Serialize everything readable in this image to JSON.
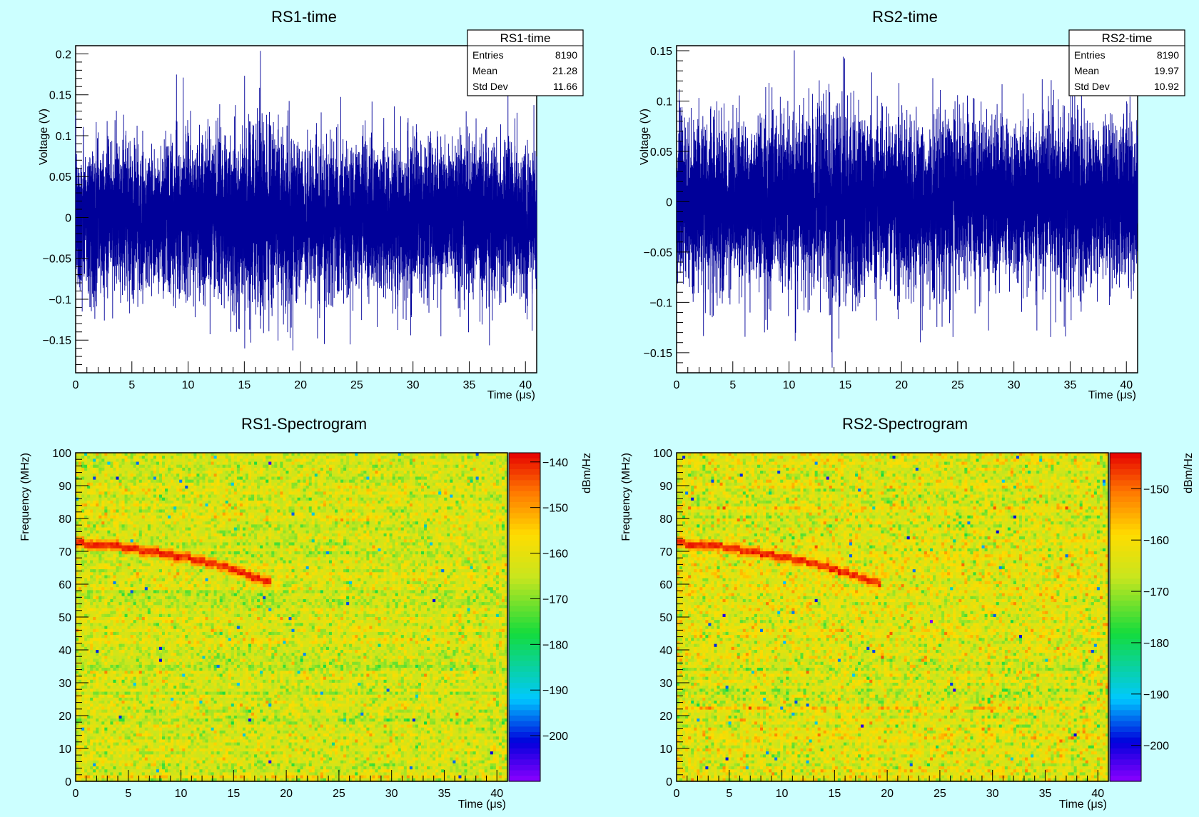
{
  "chart_data": [
    {
      "type": "line",
      "panel": "RS1",
      "title": "RS1-time",
      "xlabel": "Time (μs)",
      "ylabel": "Voltage (V)",
      "xlim": [
        0,
        41
      ],
      "ylim": [
        -0.19,
        0.21
      ],
      "xticks": [
        "0",
        "5",
        "10",
        "15",
        "20",
        "25",
        "30",
        "35",
        "40"
      ],
      "yticks": [
        "−0.15",
        "−0.1",
        "−0.05",
        "0",
        "0.05",
        "0.1",
        "0.15",
        "0.2"
      ],
      "xtick_values": [
        0,
        5,
        10,
        15,
        20,
        25,
        30,
        35,
        40
      ],
      "ytick_values": [
        -0.15,
        -0.1,
        -0.05,
        0,
        0.05,
        0.1,
        0.15,
        0.2
      ],
      "color": "#000099",
      "entries": 8190,
      "noise_sigma": 0.045,
      "envelope": [
        [
          0,
          1.0
        ],
        [
          5,
          0.95
        ],
        [
          10,
          1.0
        ],
        [
          14,
          1.15
        ],
        [
          17,
          1.25
        ],
        [
          20,
          1.0
        ],
        [
          25,
          0.95
        ],
        [
          30,
          1.0
        ],
        [
          35,
          1.02
        ],
        [
          41,
          1.0
        ]
      ],
      "stats": {
        "title": "RS1-time",
        "rows": [
          {
            "label": "Entries",
            "value": "8190"
          },
          {
            "label": "Mean",
            "value": "21.28"
          },
          {
            "label": "Std Dev",
            "value": "11.66"
          }
        ]
      }
    },
    {
      "type": "line",
      "panel": "RS2",
      "title": "RS2-time",
      "xlabel": "Time (μs)",
      "ylabel": "Voltage (V)",
      "xlim": [
        0,
        41
      ],
      "ylim": [
        -0.17,
        0.155
      ],
      "xticks": [
        "0",
        "5",
        "10",
        "15",
        "20",
        "25",
        "30",
        "35",
        "40"
      ],
      "yticks": [
        "−0.15",
        "−0.1",
        "−0.05",
        "0",
        "0.05",
        "0.1",
        "0.15"
      ],
      "xtick_values": [
        0,
        5,
        10,
        15,
        20,
        25,
        30,
        35,
        40
      ],
      "ytick_values": [
        -0.15,
        -0.1,
        -0.05,
        0,
        0.05,
        0.1,
        0.15
      ],
      "color": "#000099",
      "entries": 8190,
      "noise_sigma": 0.04,
      "envelope": [
        [
          0,
          1.0
        ],
        [
          10,
          1.0
        ],
        [
          13,
          1.1
        ],
        [
          20,
          1.05
        ],
        [
          30,
          1.0
        ],
        [
          41,
          1.0
        ]
      ],
      "stats": {
        "title": "RS2-time",
        "rows": [
          {
            "label": "Entries",
            "value": "8190"
          },
          {
            "label": "Mean",
            "value": "19.97"
          },
          {
            "label": "Std Dev",
            "value": "10.92"
          }
        ]
      }
    },
    {
      "type": "heatmap",
      "panel": "RS1",
      "title": "RS1-Spectrogram",
      "xlabel": "Time (μs)",
      "ylabel": "Frequency (MHz)",
      "zlabel": "dBm/Hz",
      "xlim": [
        0,
        41
      ],
      "ylim": [
        0,
        100
      ],
      "zlim": [
        -210,
        -138
      ],
      "xticks": [
        "0",
        "5",
        "10",
        "15",
        "20",
        "25",
        "30",
        "35",
        "40"
      ],
      "yticks": [
        "0",
        "10",
        "20",
        "30",
        "40",
        "50",
        "60",
        "70",
        "80",
        "90",
        "100"
      ],
      "zticks": [
        "−140",
        "−150",
        "−160",
        "−170",
        "−180",
        "−190",
        "−200"
      ],
      "xtick_values": [
        0,
        5,
        10,
        15,
        20,
        25,
        30,
        35,
        40
      ],
      "ytick_values": [
        0,
        10,
        20,
        30,
        40,
        50,
        60,
        70,
        80,
        90,
        100
      ],
      "ztick_values": [
        -140,
        -150,
        -160,
        -170,
        -180,
        -190,
        -200
      ],
      "background_level": -163,
      "chirp": [
        [
          0,
          72.5
        ],
        [
          4,
          71.5
        ],
        [
          8,
          69.5
        ],
        [
          12,
          67
        ],
        [
          15,
          64.5
        ],
        [
          17,
          62
        ],
        [
          18.5,
          60.5
        ]
      ],
      "chirp_level": -141
    },
    {
      "type": "heatmap",
      "panel": "RS2",
      "title": "RS2-Spectrogram",
      "xlabel": "Time (μs)",
      "ylabel": "Frequency (MHz)",
      "zlabel": "dBm/Hz",
      "xlim": [
        0,
        41
      ],
      "ylim": [
        0,
        100
      ],
      "zlim": [
        -207,
        -143
      ],
      "xticks": [
        "0",
        "5",
        "10",
        "15",
        "20",
        "25",
        "30",
        "35",
        "40"
      ],
      "yticks": [
        "0",
        "10",
        "20",
        "30",
        "40",
        "50",
        "60",
        "70",
        "80",
        "90",
        "100"
      ],
      "zticks": [
        "−150",
        "−160",
        "−170",
        "−180",
        "−190",
        "−200"
      ],
      "xtick_values": [
        0,
        5,
        10,
        15,
        20,
        25,
        30,
        35,
        40
      ],
      "ytick_values": [
        0,
        10,
        20,
        30,
        40,
        50,
        60,
        70,
        80,
        90,
        100
      ],
      "ztick_values": [
        -150,
        -160,
        -170,
        -180,
        -190,
        -200
      ],
      "background_level": -164,
      "chirp": [
        [
          0,
          72.5
        ],
        [
          4,
          71.5
        ],
        [
          8,
          69.5
        ],
        [
          12,
          67
        ],
        [
          15,
          64.5
        ],
        [
          17,
          62.5
        ],
        [
          19.5,
          60
        ]
      ],
      "chirp_level": -146
    }
  ]
}
